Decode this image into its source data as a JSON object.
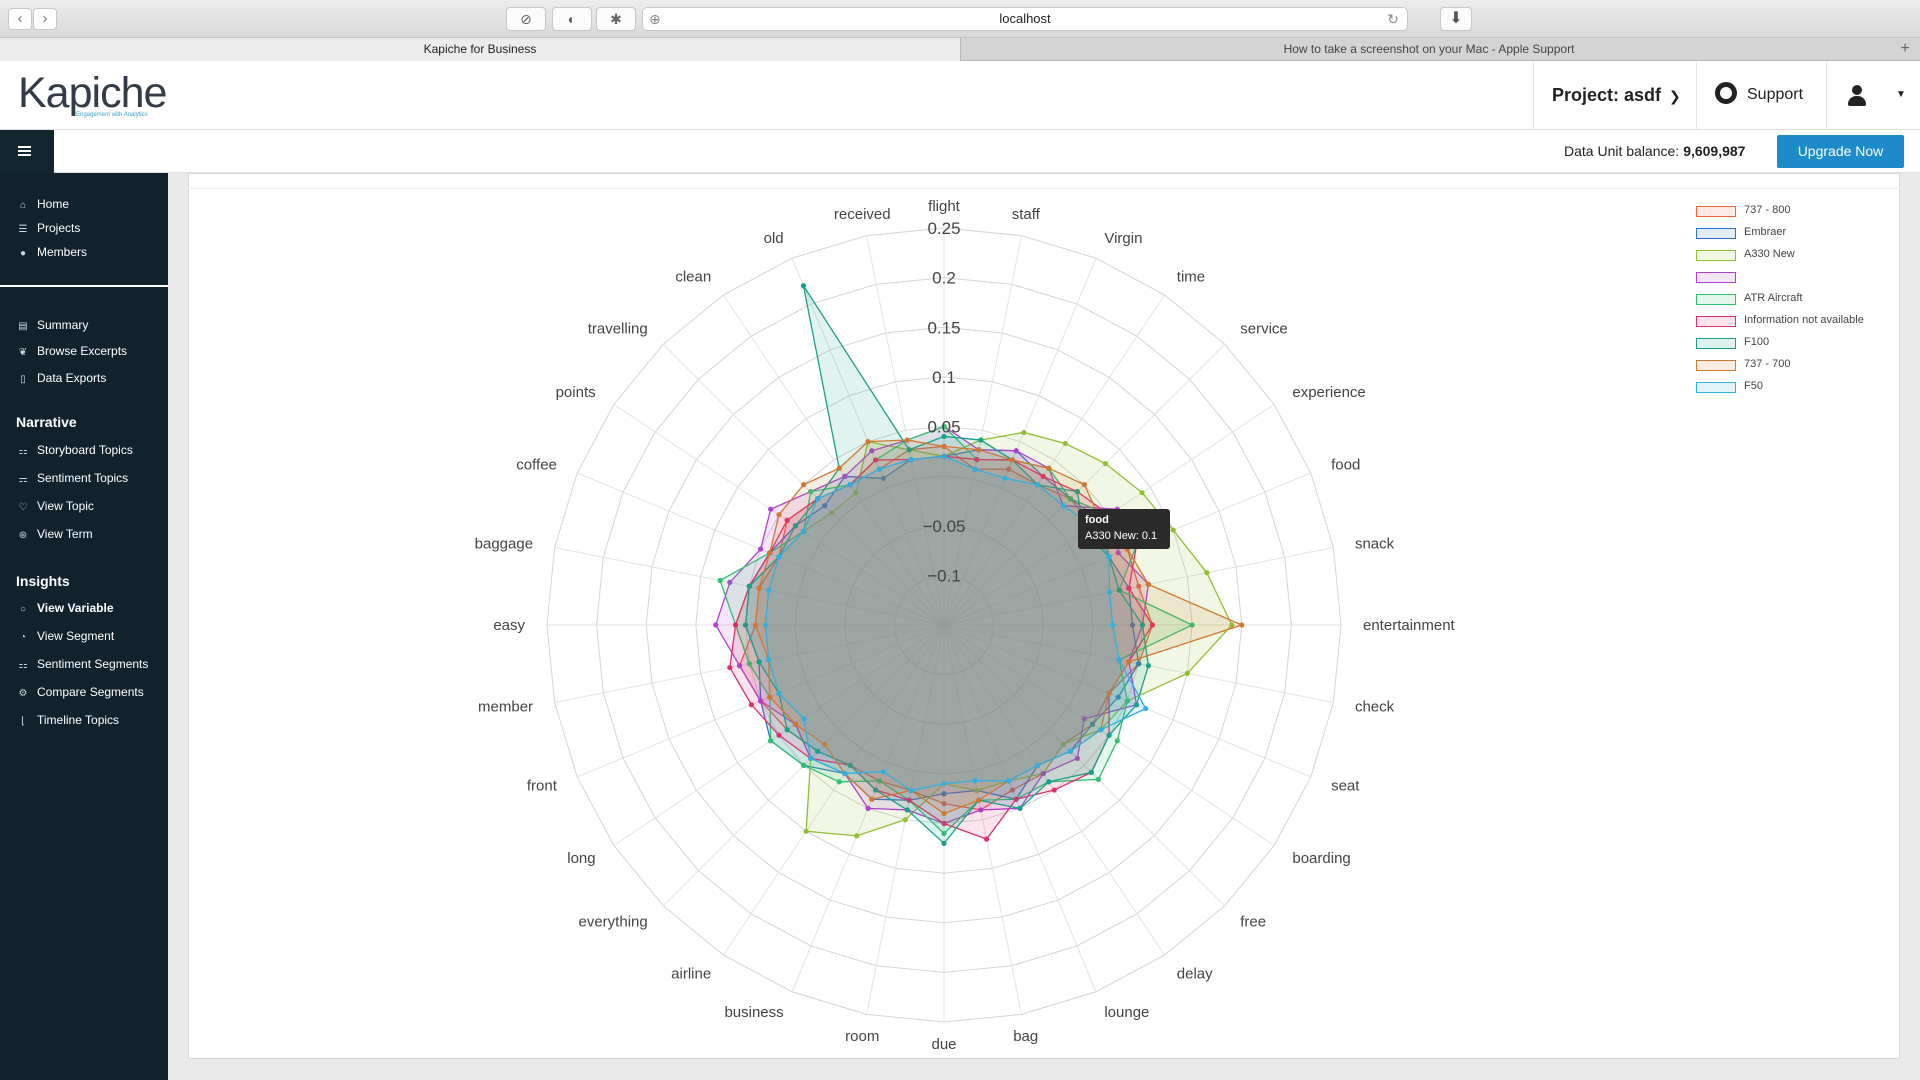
{
  "browser": {
    "url": "localhost",
    "tabs": [
      "Kapiche for Business",
      "How to take a screenshot on your Mac - Apple Support"
    ],
    "new_tab": "+"
  },
  "header": {
    "logo": "Kapiche",
    "logo_tagline": "Engagement with Analytics",
    "project": "Project: asdf",
    "support": "Support"
  },
  "subbar": {
    "balance_label": "Data Unit balance:",
    "balance_value": "9,609,987",
    "upgrade": "Upgrade Now"
  },
  "sidebar": {
    "top": [
      {
        "label": "Home",
        "icon": "home-icon"
      },
      {
        "label": "Projects",
        "icon": "list-icon"
      },
      {
        "label": "Members",
        "icon": "user-icon"
      }
    ],
    "main": [
      {
        "label": "Summary",
        "icon": "summary-icon"
      },
      {
        "label": "Browse Excerpts",
        "icon": "excerpts-icon"
      },
      {
        "label": "Data Exports",
        "icon": "file-icon"
      }
    ],
    "narrative_heading": "Narrative",
    "narrative": [
      {
        "label": "Storyboard Topics",
        "icon": "storyboard-icon"
      },
      {
        "label": "Sentiment Topics",
        "icon": "sentiment-icon"
      },
      {
        "label": "View Topic",
        "icon": "heart-icon"
      },
      {
        "label": "View Term",
        "icon": "term-icon"
      }
    ],
    "insights_heading": "Insights",
    "insights": [
      {
        "label": "View Variable",
        "icon": "circle-icon",
        "active": true
      },
      {
        "label": "View Segment",
        "icon": "segment-icon"
      },
      {
        "label": "Sentiment Segments",
        "icon": "sentiment-segments-icon"
      },
      {
        "label": "Compare Segments",
        "icon": "compare-icon"
      },
      {
        "label": "Timeline Topics",
        "icon": "timeline-icon"
      }
    ]
  },
  "tooltip": {
    "title": "food",
    "value": "A330 New: 0.1"
  },
  "chart_data": {
    "type": "radar",
    "radial_range": [
      -0.15,
      0.25
    ],
    "radial_ticks": [
      0.25,
      0.2,
      0.15,
      0.1,
      0.05,
      -0.05,
      -0.1
    ],
    "radial_tick_labels": [
      "0.25",
      "0.2",
      "0.15",
      "0.1",
      "0.05",
      "−0.05",
      "−0.1"
    ],
    "categories": [
      "flight",
      "staff",
      "Virgin",
      "time",
      "service",
      "experience",
      "food",
      "snack",
      "entertainment",
      "check",
      "seat",
      "boarding",
      "free",
      "delay",
      "lounge",
      "bag",
      "due",
      "room",
      "business",
      "airline",
      "everything",
      "long",
      "front",
      "member",
      "easy",
      "baggage",
      "coffee",
      "points",
      "travelling",
      "clean",
      "old",
      "received"
    ],
    "legend_position": "top-right",
    "series": [
      {
        "name": "737 - 800",
        "color": "#f0643c",
        "values": [
          0.03,
          0.01,
          0.02,
          0.02,
          0.03,
          0.03,
          0.05,
          0.05,
          0.06,
          0.05,
          0.03,
          0.03,
          0.02,
          0.03,
          0.03,
          0.04,
          0.03,
          0.02,
          0.02,
          0.02,
          0.03,
          0.04,
          0.05,
          0.06,
          0.04,
          0.04,
          0.03,
          0.04,
          0.03,
          0.02,
          0.02,
          0.03
        ]
      },
      {
        "name": "Embraer",
        "color": "#2c6fd0",
        "values": [
          0.02,
          0.03,
          0.04,
          0.03,
          0.03,
          0.04,
          0.03,
          0.04,
          0.04,
          0.05,
          0.04,
          0.03,
          0.03,
          0.02,
          0.04,
          0.02,
          0.02,
          0.03,
          0.04,
          0.03,
          0.05,
          0.06,
          0.05,
          0.04,
          0.05,
          0.05,
          0.04,
          0.03,
          0.02,
          0.03,
          0.01,
          0.02
        ]
      },
      {
        "name": "A330 New",
        "color": "#90c030",
        "values": [
          0.02,
          0.04,
          0.06,
          0.07,
          0.08,
          0.09,
          0.1,
          0.12,
          0.14,
          0.1,
          0.05,
          0.04,
          0.02,
          0.03,
          0.02,
          0.02,
          0.01,
          0.05,
          0.08,
          0.1,
          0.04,
          0.03,
          0.04,
          0.05,
          0.06,
          0.05,
          0.03,
          0.02,
          0.01,
          0.01,
          0.05,
          0.03
        ]
      },
      {
        "name": "",
        "color": "#b040d0",
        "values": [
          0.05,
          0.03,
          0.04,
          0.04,
          0.02,
          0.06,
          0.04,
          0.06,
          0.05,
          0.04,
          0.06,
          0.02,
          0.04,
          0.03,
          0.05,
          0.04,
          0.05,
          0.04,
          0.05,
          0.03,
          0.04,
          0.03,
          0.05,
          0.06,
          0.08,
          0.07,
          0.05,
          0.06,
          0.04,
          0.03,
          0.04,
          0.04
        ]
      },
      {
        "name": "ATR Aircraft",
        "color": "#30c070",
        "values": [
          0.05,
          0.02,
          0.03,
          0.04,
          0.03,
          0.05,
          0.06,
          0.03,
          0.1,
          0.03,
          0.05,
          0.06,
          0.07,
          0.04,
          0.04,
          0.03,
          0.06,
          0.03,
          0.02,
          0.04,
          0.05,
          0.06,
          0.04,
          0.05,
          0.06,
          0.08,
          0.04,
          0.02,
          0.04,
          0.02,
          0.03,
          0.04
        ]
      },
      {
        "name": "Information not available",
        "color": "#e0306a",
        "values": [
          0.02,
          0.02,
          0.03,
          0.03,
          0.04,
          0.05,
          0.06,
          0.04,
          0.06,
          0.04,
          0.03,
          0.05,
          0.06,
          0.05,
          0.04,
          0.07,
          0.05,
          0.03,
          0.03,
          0.02,
          0.04,
          0.05,
          0.06,
          0.07,
          0.06,
          0.05,
          0.04,
          0.04,
          0.03,
          0.02,
          0.03,
          0.02
        ]
      },
      {
        "name": "F100",
        "color": "#18a08a",
        "values": [
          0.04,
          0.04,
          0.03,
          0.02,
          0.04,
          0.02,
          0.03,
          0.03,
          0.05,
          0.06,
          0.06,
          0.05,
          0.06,
          0.04,
          0.05,
          0.03,
          0.07,
          0.04,
          0.03,
          0.02,
          0.03,
          0.04,
          0.03,
          0.04,
          0.05,
          0.05,
          0.03,
          0.03,
          0.03,
          0.04,
          0.22,
          0.03
        ]
      },
      {
        "name": "737 - 700",
        "color": "#d07830",
        "values": [
          0.03,
          0.03,
          0.03,
          0.04,
          0.05,
          0.04,
          0.05,
          0.06,
          0.15,
          0.04,
          0.03,
          0.04,
          0.03,
          0.02,
          0.02,
          0.03,
          0.04,
          0.02,
          0.04,
          0.03,
          0.02,
          0.03,
          0.04,
          0.03,
          0.04,
          0.04,
          0.04,
          0.05,
          0.05,
          0.04,
          0.05,
          0.04
        ]
      },
      {
        "name": "F50",
        "color": "#30b0e0",
        "values": [
          0.02,
          0.01,
          0.01,
          0.02,
          0.02,
          0.03,
          0.03,
          0.02,
          0.02,
          0.03,
          0.07,
          0.04,
          0.03,
          0.02,
          0.02,
          0.01,
          0.01,
          0.02,
          0.01,
          0.03,
          0.04,
          0.02,
          0.03,
          0.03,
          0.03,
          0.03,
          0.03,
          0.02,
          0.03,
          0.02,
          0.02,
          0.02
        ]
      }
    ]
  }
}
